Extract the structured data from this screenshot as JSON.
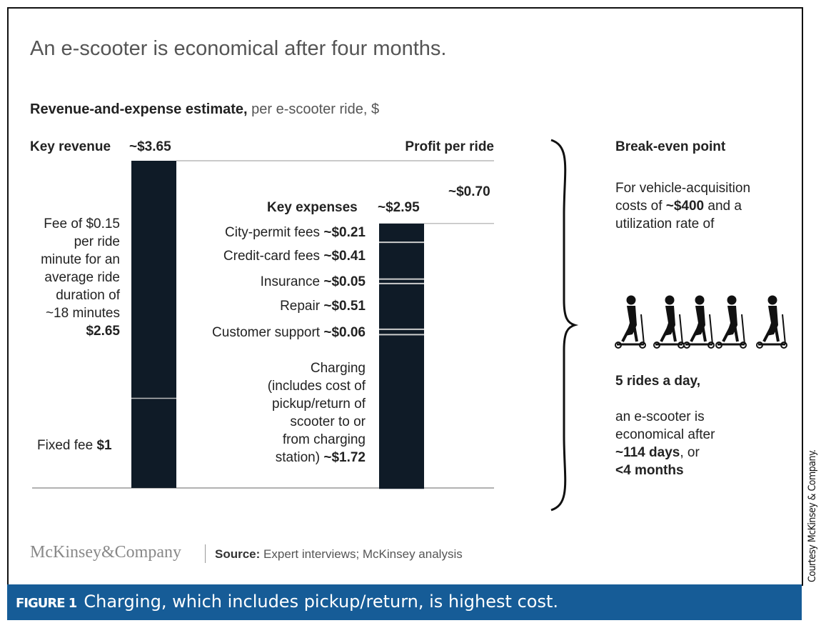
{
  "title": "An e-scooter is economical after four months.",
  "subtitle": {
    "bold": "Revenue-and-expense estimate,",
    "rest": " per e-scooter ride, $"
  },
  "chart_data": {
    "type": "waterfall",
    "unit": "$",
    "revenue": {
      "label": "Key revenue",
      "total_label": "~$3.65",
      "total": 3.65,
      "segments": [
        {
          "name": "Fee of $0.15 per ride minute for an average ride duration of ~18 minutes",
          "value": 2.65,
          "value_label": "$2.65"
        },
        {
          "name": "Fixed fee",
          "value": 1,
          "value_label": "$1"
        }
      ]
    },
    "expenses": {
      "label": "Key expenses",
      "total_label": "~$2.95",
      "total": 2.95,
      "segments": [
        {
          "name": "City-permit fees",
          "value": 0.21,
          "value_label": "~$0.21"
        },
        {
          "name": "Credit-card fees",
          "value": 0.41,
          "value_label": "~$0.41"
        },
        {
          "name": "Insurance",
          "value": 0.05,
          "value_label": "~$0.05"
        },
        {
          "name": "Repair",
          "value": 0.51,
          "value_label": "~$0.51"
        },
        {
          "name": "Customer support",
          "value": 0.06,
          "value_label": "~$0.06"
        },
        {
          "name": "Charging (includes cost of pickup/return of scooter to or from charging station)",
          "value": 1.72,
          "value_label": "~$1.72"
        }
      ]
    },
    "profit": {
      "label": "Profit per ride",
      "value": 0.7,
      "value_label": "~$0.70"
    },
    "bar_color": "#0f1b27"
  },
  "labels": {
    "fee_lines": [
      "Fee of $0.15",
      "per ride",
      "minute for an",
      "average ride",
      "duration of",
      "~18 minutes"
    ],
    "fixed_fee": "Fixed fee ",
    "charging_lines": [
      "Charging",
      "(includes cost of",
      "pickup/return of",
      "scooter to or",
      "from charging",
      "station) "
    ]
  },
  "breakeven": {
    "heading": "Break-even point",
    "line1": "For vehicle-acquisition",
    "line2a": "costs of ",
    "line2b": "~$400",
    "line2c": " and a",
    "line3": "utilization rate of",
    "rides": "5 rides a day,",
    "l4": "an e-scooter is",
    "l5": "economical after",
    "l6a": "~114 days",
    "l6b": ", or",
    "l7": "<4 months"
  },
  "footer": {
    "logo": "McKinsey&Company",
    "source_label": "Source:",
    "source": " Expert interviews; McKinsey analysis"
  },
  "caption": {
    "figure": "FIGURE 1",
    "text": "Charging, which includes pickup/return, is highest cost."
  },
  "courtesy": "Courtesy McKinsey & Company."
}
